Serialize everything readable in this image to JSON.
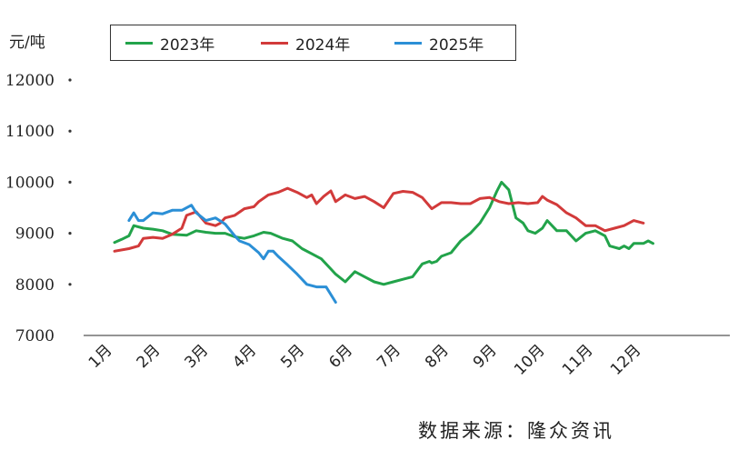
{
  "chart_data": {
    "type": "line",
    "unit_label": "元/吨",
    "source": "数据来源：隆众资讯",
    "ylim": [
      7000,
      12000
    ],
    "yticks": [
      7000,
      8000,
      9000,
      10000,
      11000,
      12000
    ],
    "xlim": [
      1,
      13
    ],
    "categories": [
      "1月",
      "2月",
      "3月",
      "4月",
      "5月",
      "6月",
      "7月",
      "8月",
      "9月",
      "10月",
      "11月",
      "12月"
    ],
    "legend_position": "top",
    "grid": false,
    "series": [
      {
        "name": "2023年",
        "color": "#22a34a",
        "x": [
          1.0,
          1.15,
          1.3,
          1.4,
          1.6,
          1.8,
          2.0,
          2.2,
          2.5,
          2.7,
          2.9,
          3.1,
          3.3,
          3.5,
          3.7,
          3.9,
          4.1,
          4.25,
          4.5,
          4.7,
          4.9,
          5.1,
          5.3,
          5.5,
          5.6,
          5.8,
          6.0,
          6.2,
          6.4,
          6.6,
          6.8,
          7.0,
          7.2,
          7.4,
          7.55,
          7.6,
          7.7,
          7.8,
          8.0,
          8.2,
          8.4,
          8.6,
          8.8,
          8.95,
          9.05,
          9.2,
          9.35,
          9.5,
          9.6,
          9.75,
          9.9,
          10.0,
          10.2,
          10.4,
          10.6,
          10.8,
          11.0,
          11.2,
          11.3,
          11.5,
          11.6,
          11.7,
          11.8,
          12.0,
          12.1,
          12.2
        ],
        "values": [
          8820,
          8880,
          8950,
          9150,
          9100,
          9080,
          9050,
          8980,
          8960,
          9050,
          9020,
          9000,
          9000,
          8930,
          8900,
          8950,
          9020,
          9000,
          8900,
          8850,
          8700,
          8600,
          8500,
          8300,
          8200,
          8050,
          8250,
          8150,
          8050,
          8000,
          8050,
          8100,
          8150,
          8400,
          8450,
          8420,
          8450,
          8550,
          8620,
          8850,
          9000,
          9200,
          9500,
          9820,
          10000,
          9850,
          9300,
          9200,
          9050,
          9000,
          9100,
          9250,
          9050,
          9050,
          8850,
          9000,
          9050,
          8950,
          8750,
          8700,
          8750,
          8700,
          8800,
          8800,
          8850,
          8800
        ]
      },
      {
        "name": "2024年",
        "color": "#d23a3a",
        "x": [
          1.0,
          1.3,
          1.5,
          1.6,
          1.8,
          2.0,
          2.2,
          2.4,
          2.5,
          2.7,
          2.9,
          3.1,
          3.2,
          3.3,
          3.5,
          3.7,
          3.9,
          4.0,
          4.2,
          4.4,
          4.6,
          4.8,
          5.0,
          5.1,
          5.2,
          5.35,
          5.5,
          5.6,
          5.8,
          6.0,
          6.2,
          6.4,
          6.6,
          6.8,
          7.0,
          7.2,
          7.4,
          7.6,
          7.8,
          8.0,
          8.2,
          8.4,
          8.6,
          8.8,
          9.0,
          9.2,
          9.4,
          9.6,
          9.8,
          9.9,
          10.0,
          10.2,
          10.4,
          10.6,
          10.8,
          11.0,
          11.2,
          11.4,
          11.6,
          11.8,
          12.0
        ],
        "values": [
          8650,
          8700,
          8750,
          8900,
          8920,
          8900,
          8980,
          9100,
          9350,
          9420,
          9200,
          9150,
          9200,
          9300,
          9350,
          9480,
          9520,
          9620,
          9750,
          9800,
          9880,
          9800,
          9700,
          9750,
          9580,
          9720,
          9830,
          9620,
          9750,
          9680,
          9720,
          9620,
          9500,
          9780,
          9820,
          9800,
          9700,
          9480,
          9600,
          9600,
          9580,
          9580,
          9680,
          9700,
          9620,
          9580,
          9600,
          9580,
          9600,
          9720,
          9650,
          9560,
          9400,
          9300,
          9150,
          9150,
          9050,
          9100,
          9150,
          9250,
          9200
        ]
      },
      {
        "name": "2025年",
        "color": "#2b8fd6",
        "x": [
          1.3,
          1.4,
          1.5,
          1.6,
          1.8,
          2.0,
          2.2,
          2.4,
          2.6,
          2.7,
          2.9,
          3.1,
          3.3,
          3.5,
          3.55,
          3.6,
          3.8,
          3.9,
          4.0,
          4.1,
          4.2,
          4.3,
          4.4,
          4.6,
          4.8,
          5.0,
          5.2,
          5.4,
          5.6
        ],
        "values": [
          9250,
          9400,
          9250,
          9250,
          9400,
          9380,
          9450,
          9450,
          9550,
          9400,
          9250,
          9300,
          9180,
          8950,
          8900,
          8850,
          8780,
          8700,
          8620,
          8500,
          8650,
          8650,
          8550,
          8380,
          8200,
          8000,
          7950,
          7950,
          7650
        ]
      }
    ]
  }
}
